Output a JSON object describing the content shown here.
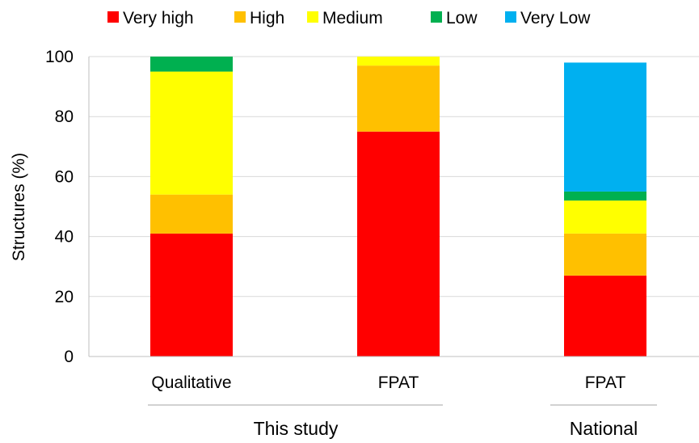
{
  "chart_data": {
    "type": "bar",
    "stacked": true,
    "categories": [
      "Qualitative",
      "FPAT",
      "FPAT"
    ],
    "groups": [
      {
        "label": "This study",
        "categories": [
          0,
          1
        ]
      },
      {
        "label": "National",
        "categories": [
          2
        ]
      }
    ],
    "series": [
      {
        "name": "Very high",
        "color": "#FF0000",
        "values": [
          41,
          75,
          27
        ]
      },
      {
        "name": "High",
        "color": "#FFC000",
        "values": [
          13,
          22,
          14
        ]
      },
      {
        "name": "Medium",
        "color": "#FFFF00",
        "values": [
          41,
          3,
          11
        ]
      },
      {
        "name": "Low",
        "color": "#00B050",
        "values": [
          5,
          0,
          3
        ]
      },
      {
        "name": "Very Low",
        "color": "#00B0F0",
        "values": [
          0,
          0,
          43
        ]
      }
    ],
    "ylabel": "Structures (%)",
    "xlabel": "",
    "ylim": [
      0,
      100
    ],
    "yticks": [
      0,
      20,
      40,
      60,
      80,
      100
    ],
    "grid": true,
    "legend_position": "top"
  }
}
